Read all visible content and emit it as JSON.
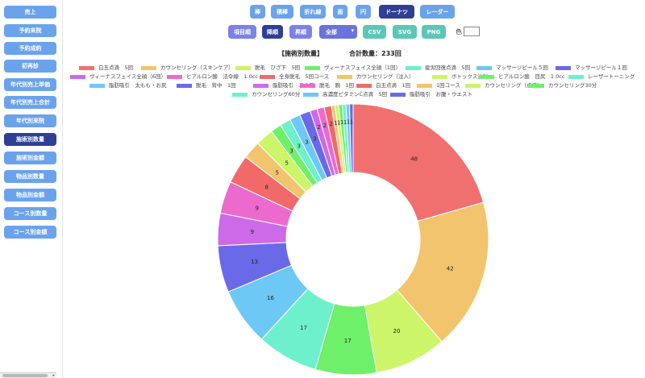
{
  "sidebar": {
    "items": [
      {
        "label": "売上",
        "active": false
      },
      {
        "label": "予約来院",
        "active": false
      },
      {
        "label": "予約成約",
        "active": false
      },
      {
        "label": "初再診",
        "active": false
      },
      {
        "label": "年代別売上単価",
        "active": false
      },
      {
        "label": "年代別売上合計",
        "active": false
      },
      {
        "label": "年代別来院",
        "active": false
      },
      {
        "label": "施術別数量",
        "active": true
      },
      {
        "label": "施術別金額",
        "active": false
      },
      {
        "label": "物品別数量",
        "active": false
      },
      {
        "label": "物品別金額",
        "active": false
      },
      {
        "label": "コース別数量",
        "active": false
      },
      {
        "label": "コース別金額",
        "active": false
      }
    ]
  },
  "chart_types": [
    {
      "label": "棒",
      "active": false
    },
    {
      "label": "積棒",
      "active": false
    },
    {
      "label": "折れ線",
      "active": false
    },
    {
      "label": "面",
      "active": false
    },
    {
      "label": "円",
      "active": false
    },
    {
      "label": "ドーナツ",
      "active": true
    },
    {
      "label": "レーダー",
      "active": false
    }
  ],
  "toolbar": {
    "item_order": "項目順",
    "desc": "降順",
    "asc": "昇順",
    "period_selected": "全部",
    "csv": "CSV",
    "svg": "SVG",
    "png": "PNG",
    "color_label": "色"
  },
  "colors": {
    "sidebar_button": "#6aa3ec",
    "active_button": "#2f3f96",
    "sort_button": "#7c83e6",
    "export_button": "#5cc6b8"
  },
  "chart_data": {
    "type": "donut",
    "title": "【施術別数量】",
    "total_label": "合計数量：233回",
    "slices": [
      {
        "label": "白玉点滴　5回",
        "value": 48,
        "color": "#f07070"
      },
      {
        "label": "カウンセリング（スキンケア）",
        "value": 42,
        "color": "#f2c46e"
      },
      {
        "label": "脱毛　ひざ下　5回",
        "value": 20,
        "color": "#ccf56a"
      },
      {
        "label": "ヴィーナスフェイス全顔（1回）",
        "value": 17,
        "color": "#6ef06a"
      },
      {
        "label": "疲労回復点滴　5回",
        "value": 17,
        "color": "#6ef0cc"
      },
      {
        "label": "マッサージピール５回",
        "value": 16,
        "color": "#6ec8f5"
      },
      {
        "label": "マッサージピール１回",
        "value": 13,
        "color": "#6a6ae8"
      },
      {
        "label": "ヴィーナスフェイス全顔（6回）",
        "value": 9,
        "color": "#cc6ae8"
      },
      {
        "label": "ヒアルロン酸　法令線　1.0cc",
        "value": 9,
        "color": "#ec6acd"
      },
      {
        "label": "全身脱毛　5回コース",
        "value": 8,
        "color": "#f06a6a"
      },
      {
        "label": "カウンセリング（注入）",
        "value": 5,
        "color": "#f2c46e"
      },
      {
        "label": "ボトックス注射",
        "value": 5,
        "color": "#ccf56a"
      },
      {
        "label": "ヒアルロン酸　目尻　1.0cc",
        "value": 3,
        "color": "#6ef06a"
      },
      {
        "label": "レーザートーニング",
        "value": 3,
        "color": "#6ef0cc"
      },
      {
        "label": "脂肪吸引　太もも・お尻",
        "value": 3,
        "color": "#6ec8f5"
      },
      {
        "label": "脱毛　背中　1回",
        "value": 3,
        "color": "#6a6ae8"
      },
      {
        "label": "脂肪吸引　二の腕",
        "value": 2,
        "color": "#cc6ae8"
      },
      {
        "label": "脱毛　腕　1回",
        "value": 2,
        "color": "#ec6acd"
      },
      {
        "label": "白玉点滴　1回",
        "value": 2,
        "color": "#f06a6a"
      },
      {
        "label": "1回コース",
        "value": 1,
        "color": "#f2c46e"
      },
      {
        "label": "カウンセリング（点滴）",
        "value": 1,
        "color": "#ccf56a"
      },
      {
        "label": "カウンセリング30分",
        "value": 1,
        "color": "#6ef06a"
      },
      {
        "label": "カウンセリング60分",
        "value": 1,
        "color": "#6ef0cc"
      },
      {
        "label": "高濃度ビタミンC点滴　5回",
        "value": 1,
        "color": "#6ec8f5"
      },
      {
        "label": "脂肪吸引　お腹・ウエスト",
        "value": 1,
        "color": "#6a6ae8"
      }
    ],
    "legend_position": "top"
  }
}
